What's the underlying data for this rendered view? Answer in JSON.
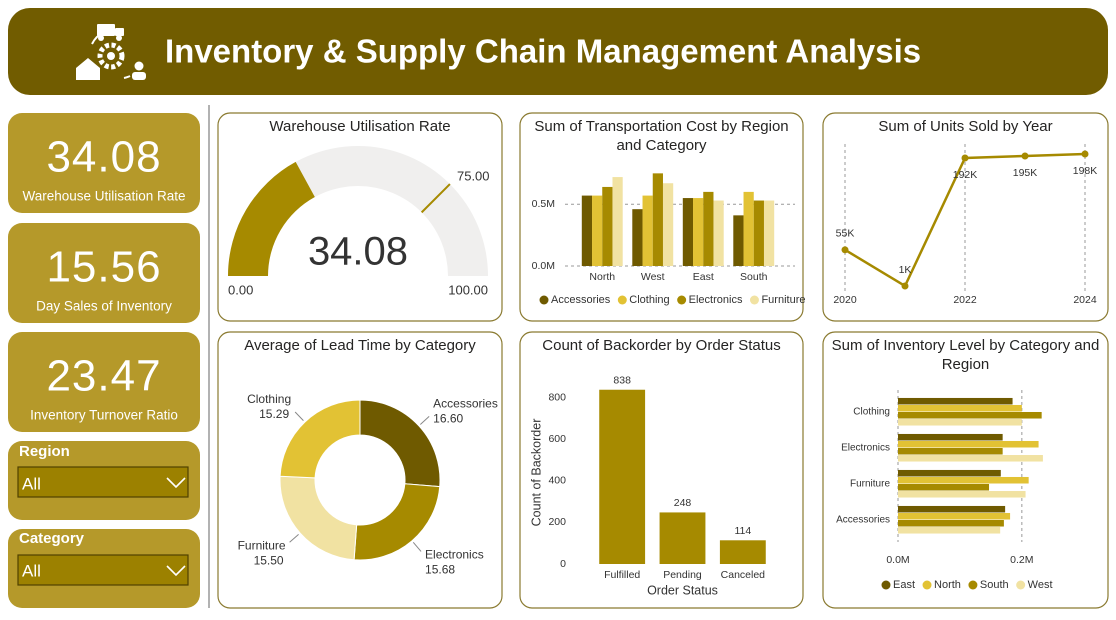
{
  "header": {
    "title": "Inventory & Supply Chain Management Analysis"
  },
  "kpis": [
    {
      "value": 34.08,
      "label": "Warehouse Utilisation Rate"
    },
    {
      "value": 15.56,
      "label": "Day Sales of Inventory"
    },
    {
      "value": 23.47,
      "label": "Inventory Turnover Ratio"
    }
  ],
  "slicers": [
    {
      "label": "Region",
      "selected": "All"
    },
    {
      "label": "Category",
      "selected": "All"
    }
  ],
  "chart_data": [
    {
      "type": "gauge",
      "title": "Warehouse Utilisation Rate",
      "value": 34.08,
      "min": {
        "value": 0,
        "label": "0.00"
      },
      "max": {
        "value": 100,
        "label": "100.00"
      },
      "target": {
        "value": 75,
        "label": "75.00"
      },
      "color": "#a68a00"
    },
    {
      "type": "bar",
      "title": "Sum of Transportation Cost by Region and Category",
      "categories": [
        "North",
        "West",
        "East",
        "South"
      ],
      "series": [
        {
          "name": "Accessories",
          "color": "#6f5a00",
          "values": [
            570000,
            460000,
            550000,
            410000
          ]
        },
        {
          "name": "Clothing",
          "color": "#e2c234",
          "values": [
            570000,
            570000,
            550000,
            600000
          ]
        },
        {
          "name": "Electronics",
          "color": "#a68a00",
          "values": [
            640000,
            750000,
            600000,
            530000
          ]
        },
        {
          "name": "Furniture",
          "color": "#f1e2a2",
          "values": [
            720000,
            670000,
            530000,
            530000
          ]
        }
      ],
      "ylim": [
        0,
        850000
      ],
      "yticks": [
        {
          "value": 0,
          "label": "0.0M"
        },
        {
          "value": 500000,
          "label": "0.5M"
        }
      ],
      "grid": true
    },
    {
      "type": "line",
      "title": "Sum of Units Sold by Year",
      "x": [
        2020,
        2021,
        2022,
        2023,
        2024
      ],
      "values": [
        55000,
        1000,
        192000,
        195000,
        198000
      ],
      "value_labels": [
        "55K",
        "1K",
        "192K",
        "195K",
        "198K"
      ],
      "xlim": [
        2020,
        2024
      ],
      "xticks": [
        2020,
        2022,
        2024
      ],
      "color": "#a68a00",
      "grid": true
    },
    {
      "type": "donut",
      "title": "Average of Lead Time by Category",
      "categories": [
        "Accessories",
        "Electronics",
        "Furniture",
        "Clothing"
      ],
      "values": [
        16.6,
        15.68,
        15.5,
        15.29
      ],
      "value_labels": [
        "16.60",
        "15.68",
        "15.50",
        "15.29"
      ],
      "colors": [
        "#6f5a00",
        "#a68a00",
        "#f1e2a2",
        "#e2c234"
      ]
    },
    {
      "type": "bar",
      "title": "Count of Backorder by Order Status",
      "categories": [
        "Fulfilled",
        "Pending",
        "Canceled"
      ],
      "values": [
        838,
        248,
        114
      ],
      "color": "#a68a00",
      "ylim": [
        0,
        880
      ],
      "yticks": [
        0,
        200,
        400,
        600,
        800
      ],
      "xlabel": "Order Status",
      "ylabel": "Count of Backorder",
      "data_labels": true,
      "grid": false
    },
    {
      "type": "barh",
      "title": "Sum of Inventory Level by Category and Region",
      "categories": [
        "Clothing",
        "Electronics",
        "Furniture",
        "Accessories"
      ],
      "series": [
        {
          "name": "East",
          "color": "#6f5a00",
          "values": [
            185000,
            169000,
            166000,
            173000
          ]
        },
        {
          "name": "North",
          "color": "#e2c234",
          "values": [
            200000,
            227000,
            211000,
            181000
          ]
        },
        {
          "name": "South",
          "color": "#a68a00",
          "values": [
            232000,
            169000,
            147000,
            171000
          ]
        },
        {
          "name": "West",
          "color": "#f1e2a2",
          "values": [
            200000,
            234000,
            206000,
            165000
          ]
        }
      ],
      "xlim": [
        0,
        260000
      ],
      "xticks": [
        {
          "value": 0,
          "label": "0.0M"
        },
        {
          "value": 200000,
          "label": "0.2M"
        }
      ],
      "grid": true
    }
  ]
}
